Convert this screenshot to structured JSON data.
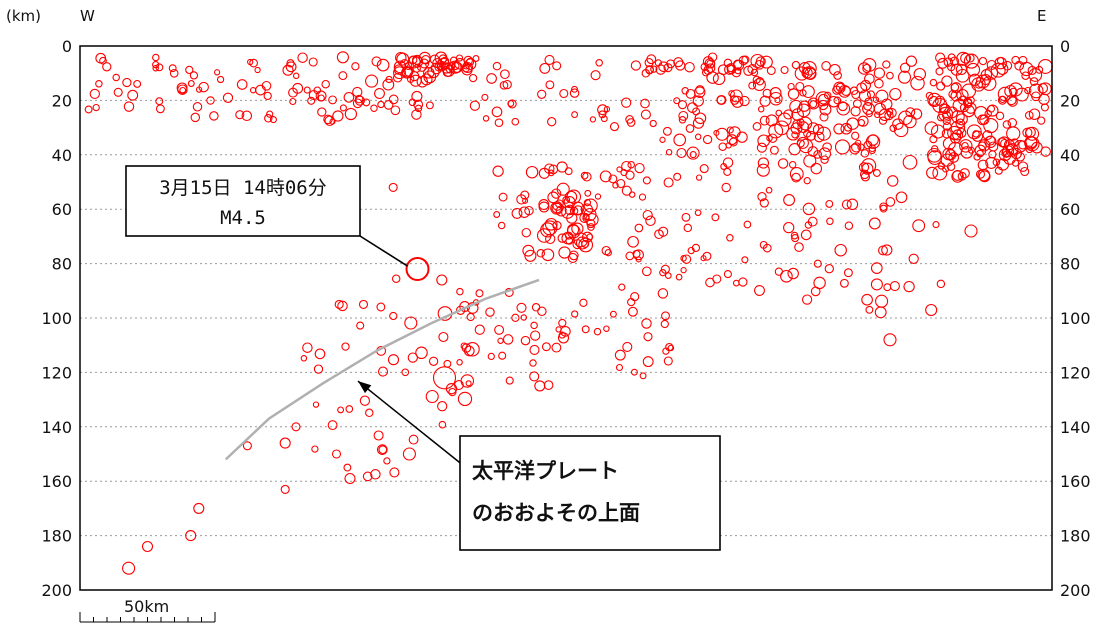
{
  "chart_data": {
    "type": "scatter",
    "title": "",
    "ylabel": "(km)",
    "west_label": "W",
    "east_label": "E",
    "ylim": [
      0,
      200
    ],
    "y_inverted": true,
    "y_ticks": [
      0,
      20,
      40,
      60,
      80,
      100,
      120,
      140,
      160,
      180,
      200
    ],
    "y_tick_labels": [
      "0",
      "20",
      "40",
      "60",
      "80",
      "100",
      "120",
      "140",
      "160",
      "180",
      "200"
    ],
    "xlim": [
      0,
      360
    ],
    "x_unit": "km",
    "grid": "horizontal dotted",
    "marker": "open circle",
    "marker_color": "#ff0000",
    "scale_bar": {
      "label": "50km",
      "length_km": 50
    },
    "highlighted_event": {
      "x": 125,
      "y": 82,
      "label_line1": "3月15日 14時06分",
      "label_line2": "M4.5"
    },
    "plate_boundary": {
      "label_line1": "太平洋プレート",
      "label_line2": "のおおよその上面",
      "points": [
        [
          54,
          152
        ],
        [
          70,
          137
        ],
        [
          90,
          124
        ],
        [
          110,
          112
        ],
        [
          130,
          102
        ],
        [
          150,
          93
        ],
        [
          170,
          86
        ]
      ],
      "arrow_target": [
        100,
        121
      ],
      "color": "#b0b0b0"
    },
    "clusters": [
      {
        "x": [
          2,
          95
        ],
        "y": [
          4,
          28
        ],
        "n": 70,
        "r": [
          2.5,
          5
        ]
      },
      {
        "x": [
          95,
          130
        ],
        "y": [
          4,
          26
        ],
        "n": 40,
        "r": [
          3,
          6
        ]
      },
      {
        "x": [
          115,
          145
        ],
        "y": [
          4,
          10
        ],
        "n": 45,
        "r": [
          3,
          6
        ]
      },
      {
        "x": [
          145,
          210
        ],
        "y": [
          4,
          30
        ],
        "n": 40,
        "r": [
          2.5,
          5
        ]
      },
      {
        "x": [
          210,
          250
        ],
        "y": [
          4,
          10
        ],
        "n": 35,
        "r": [
          3,
          5
        ]
      },
      {
        "x": [
          210,
          300
        ],
        "y": [
          10,
          40
        ],
        "n": 90,
        "r": [
          2.5,
          6
        ]
      },
      {
        "x": [
          250,
          330
        ],
        "y": [
          5,
          50
        ],
        "n": 150,
        "r": [
          3,
          7
        ]
      },
      {
        "x": [
          318,
          358
        ],
        "y": [
          4,
          40
        ],
        "n": 110,
        "r": [
          3,
          7
        ]
      },
      {
        "x": [
          315,
          355
        ],
        "y": [
          35,
          48
        ],
        "n": 40,
        "r": [
          3,
          6
        ]
      },
      {
        "x": [
          150,
          210
        ],
        "y": [
          40,
          80
        ],
        "n": 60,
        "r": [
          2.5,
          6
        ]
      },
      {
        "x": [
          170,
          190
        ],
        "y": [
          55,
          75
        ],
        "n": 35,
        "r": [
          3,
          7
        ]
      },
      {
        "x": [
          200,
          260
        ],
        "y": [
          40,
          90
        ],
        "n": 50,
        "r": [
          2.5,
          5
        ]
      },
      {
        "x": [
          260,
          320
        ],
        "y": [
          55,
          98
        ],
        "n": 45,
        "r": [
          3,
          6
        ]
      },
      {
        "x": [
          140,
          220
        ],
        "y": [
          90,
          125
        ],
        "n": 60,
        "r": [
          2.5,
          5
        ]
      },
      {
        "x": [
          110,
          150
        ],
        "y": [
          80,
          130
        ],
        "n": 25,
        "r": [
          3,
          7
        ]
      },
      {
        "x": [
          105,
          135
        ],
        "y": [
          130,
          160
        ],
        "n": 12,
        "r": [
          3,
          5
        ]
      },
      {
        "x": [
          78,
          115
        ],
        "y": [
          95,
          155
        ],
        "n": 15,
        "r": [
          2.5,
          5
        ]
      }
    ],
    "isolated_points": [
      {
        "x": 18,
        "y": 192,
        "r": 6
      },
      {
        "x": 25,
        "y": 184,
        "r": 5
      },
      {
        "x": 41,
        "y": 180,
        "r": 5
      },
      {
        "x": 44,
        "y": 170,
        "r": 5
      },
      {
        "x": 62,
        "y": 147,
        "r": 4
      },
      {
        "x": 76,
        "y": 146,
        "r": 5
      },
      {
        "x": 80,
        "y": 140,
        "r": 4
      },
      {
        "x": 76,
        "y": 163,
        "r": 4
      },
      {
        "x": 100,
        "y": 159,
        "r": 5
      },
      {
        "x": 95,
        "y": 150,
        "r": 4
      },
      {
        "x": 122,
        "y": 150,
        "r": 6
      },
      {
        "x": 135,
        "y": 122,
        "r": 11
      },
      {
        "x": 96,
        "y": 95,
        "r": 4
      },
      {
        "x": 105,
        "y": 95,
        "r": 4
      },
      {
        "x": 116,
        "y": 52,
        "r": 4
      },
      {
        "x": 330,
        "y": 68,
        "r": 6
      },
      {
        "x": 300,
        "y": 108,
        "r": 6
      }
    ]
  }
}
